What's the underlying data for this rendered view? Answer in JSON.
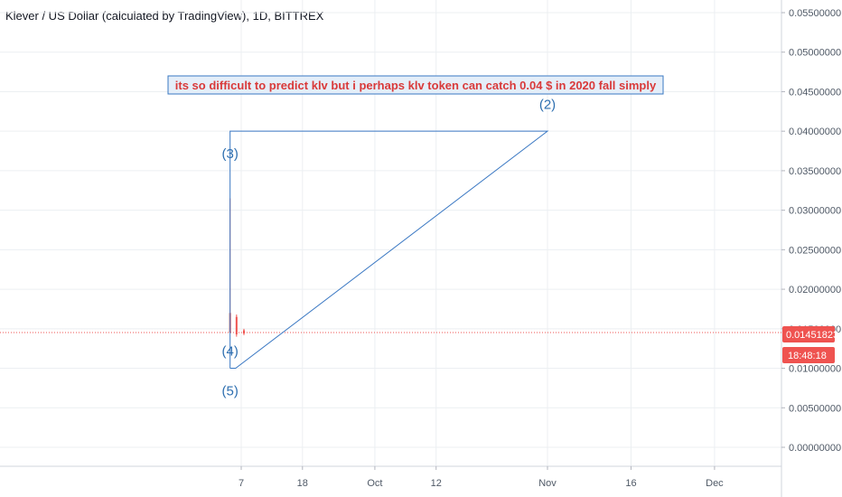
{
  "header": {
    "title": "Klever / US Dollar (calculated by TradingView), 1D, BITTREX"
  },
  "colors": {
    "line": "#3a78c3",
    "candle_down": "#ef5350",
    "price_tag": "#ef5350",
    "grid": "#eceff2",
    "price_line": "#ef5350"
  },
  "price_tag": {
    "value": "0.01451823",
    "countdown": "18:48:18"
  },
  "annotation": {
    "text": "its so difficult to predict klv but i perhaps klv token can catch 0.04 $ in 2020 fall simply"
  },
  "chart_data": {
    "type": "line",
    "title": "Klever / US Dollar (calculated by TradingView), 1D, BITTREX",
    "y_range": [
      -0.002,
      0.057
    ],
    "y_ticks": [
      "0.05500000",
      "0.05000000",
      "0.04500000",
      "0.04000000",
      "0.03500000",
      "0.03000000",
      "0.02500000",
      "0.02000000",
      "0.01500000",
      "0.01000000",
      "0.00500000",
      "0.00000000"
    ],
    "y_tick_values": [
      0.055,
      0.05,
      0.045,
      0.04,
      0.035,
      0.03,
      0.025,
      0.02,
      0.015,
      0.01,
      0.005,
      0.0
    ],
    "x_ticks": [
      "7",
      "18",
      "Oct",
      "12",
      "Nov",
      "16",
      "Dec"
    ],
    "x_tick_dates": [
      "2020-09-07",
      "2020-09-18",
      "2020-10-01",
      "2020-10-12",
      "2020-11-01",
      "2020-11-16",
      "2020-12-01"
    ],
    "last_price": 0.01451823,
    "wave_labels": [
      {
        "label": "(2)",
        "date": "2020-11-01",
        "value": 0.0412,
        "anchor": "above"
      },
      {
        "label": "(3)",
        "date": "2020-09-05",
        "value": 0.04,
        "anchor": "below"
      },
      {
        "label": "(4)",
        "date": "2020-09-05",
        "value": 0.01,
        "anchor": "above"
      },
      {
        "label": "(5)",
        "date": "2020-09-05",
        "value": 0.01,
        "anchor": "below"
      }
    ],
    "wave_path": [
      {
        "date": "2020-09-05",
        "value": 0.01
      },
      {
        "date": "2020-09-05",
        "value": 0.04
      },
      {
        "date": "2020-11-01",
        "value": 0.04
      },
      {
        "date": "2020-09-06",
        "value": 0.01
      },
      {
        "date": "2020-09-05",
        "value": 0.01
      }
    ],
    "candles": [
      {
        "date": "2020-09-05",
        "open": 0.0145,
        "high": 0.0315,
        "low": 0.0145,
        "close": 0.017,
        "color": "up-wick"
      },
      {
        "date": "2020-09-06",
        "open": 0.0165,
        "high": 0.0168,
        "low": 0.014,
        "close": 0.0143,
        "color": "down"
      },
      {
        "date": "2020-09-07",
        "open": 0.0148,
        "high": 0.015,
        "low": 0.0142,
        "close": 0.0144,
        "color": "down"
      }
    ]
  }
}
